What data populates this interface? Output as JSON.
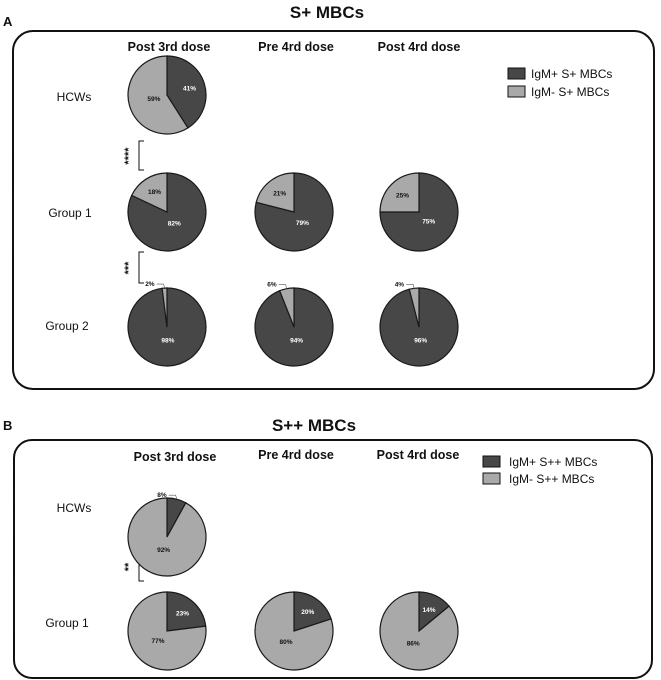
{
  "colors": {
    "igm_pos": "#474747",
    "igm_neg": "#a9a9a9",
    "outline": "#1a1a1a"
  },
  "columns": [
    "Post 3rd dose",
    "Pre 4rd dose",
    "Post 4rd dose"
  ],
  "chart_data": [
    {
      "type": "pie",
      "panel_label": "A",
      "title": "S+  MBCs",
      "columns": [
        "Post 3rd dose",
        "Pre 4rd dose",
        "Post 4rd dose"
      ],
      "legend": [
        "IgM+ S+ MBCs",
        "IgM- S+ MBCs"
      ],
      "legend_position": "top-right",
      "rows": [
        {
          "label": "HCWs",
          "pies": [
            {
              "pos": 41,
              "neg": 59
            },
            null,
            null
          ]
        },
        {
          "label": "Group 1",
          "pies": [
            {
              "pos": 82,
              "neg": 18
            },
            {
              "pos": 79,
              "neg": 21
            },
            {
              "pos": 75,
              "neg": 25
            }
          ]
        },
        {
          "label": "Group 2",
          "pies": [
            {
              "pos": 98,
              "neg": 2
            },
            {
              "pos": 94,
              "neg": 6
            },
            {
              "pos": 96,
              "neg": 4
            }
          ]
        }
      ],
      "significance": [
        "****",
        "***"
      ]
    },
    {
      "type": "pie",
      "panel_label": "B",
      "title": "S++  MBCs",
      "columns": [
        "Post 3rd dose",
        "Pre 4rd dose",
        "Post 4rd dose"
      ],
      "legend": [
        "IgM+ S++ MBCs",
        "IgM- S++ MBCs"
      ],
      "legend_position": "top-right",
      "rows": [
        {
          "label": "HCWs",
          "pies": [
            {
              "pos": 8,
              "neg": 92
            },
            null,
            null
          ]
        },
        {
          "label": "Group 1",
          "pies": [
            {
              "pos": 23,
              "neg": 77
            },
            {
              "pos": 20,
              "neg": 80
            },
            {
              "pos": 14,
              "neg": 86
            }
          ]
        }
      ],
      "significance": [
        "**"
      ]
    }
  ]
}
